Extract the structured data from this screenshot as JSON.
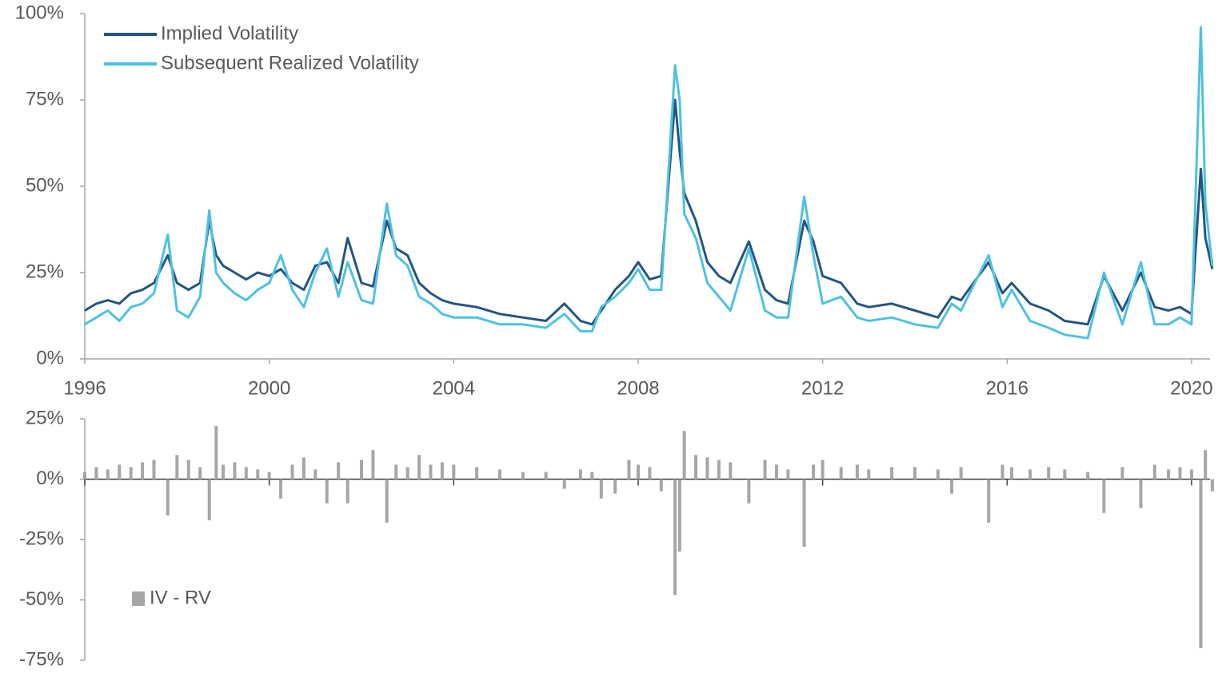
{
  "chart_data": [
    {
      "type": "line",
      "x": [
        1996.0,
        1996.25,
        1996.5,
        1996.75,
        1997.0,
        1997.25,
        1997.5,
        1997.8,
        1998.0,
        1998.25,
        1998.5,
        1998.7,
        1998.85,
        1999.0,
        1999.25,
        1999.5,
        1999.75,
        2000.0,
        2000.25,
        2000.5,
        2000.75,
        2001.0,
        2001.25,
        2001.5,
        2001.7,
        2002.0,
        2002.25,
        2002.55,
        2002.75,
        2003.0,
        2003.25,
        2003.5,
        2003.75,
        2004.0,
        2004.5,
        2005.0,
        2005.5,
        2006.0,
        2006.4,
        2006.75,
        2007.0,
        2007.2,
        2007.5,
        2007.8,
        2008.0,
        2008.25,
        2008.5,
        2008.8,
        2008.9,
        2009.0,
        2009.25,
        2009.5,
        2009.75,
        2010.0,
        2010.4,
        2010.75,
        2011.0,
        2011.25,
        2011.6,
        2011.8,
        2012.0,
        2012.4,
        2012.75,
        2013.0,
        2013.5,
        2014.0,
        2014.5,
        2014.8,
        2015.0,
        2015.6,
        2015.9,
        2016.1,
        2016.5,
        2016.9,
        2017.25,
        2017.75,
        2018.1,
        2018.5,
        2018.9,
        2019.2,
        2019.5,
        2019.75,
        2020.0,
        2020.2,
        2020.3,
        2020.45
      ],
      "series": [
        {
          "name": "Implied Volatility",
          "color": "#235582",
          "values": [
            14,
            16,
            17,
            16,
            19,
            20,
            22,
            30,
            22,
            20,
            22,
            40,
            30,
            27,
            25,
            23,
            25,
            24,
            26,
            22,
            20,
            27,
            28,
            22,
            35,
            22,
            21,
            40,
            32,
            30,
            22,
            19,
            17,
            16,
            15,
            13,
            12,
            11,
            16,
            11,
            10,
            14,
            20,
            24,
            28,
            23,
            24,
            75,
            60,
            48,
            40,
            28,
            24,
            22,
            34,
            20,
            17,
            16,
            40,
            34,
            24,
            22,
            16,
            15,
            16,
            14,
            12,
            18,
            17,
            28,
            19,
            22,
            16,
            14,
            11,
            10,
            24,
            14,
            25,
            15,
            14,
            15,
            13,
            55,
            35,
            26
          ]
        },
        {
          "name": "Subsequent Realized Volatility",
          "color": "#4dc1e3",
          "values": [
            10,
            12,
            14,
            11,
            15,
            16,
            19,
            36,
            14,
            12,
            18,
            43,
            25,
            22,
            19,
            17,
            20,
            22,
            30,
            20,
            15,
            25,
            32,
            18,
            28,
            17,
            16,
            45,
            30,
            27,
            18,
            16,
            13,
            12,
            12,
            10,
            10,
            9,
            13,
            8,
            8,
            15,
            18,
            22,
            26,
            20,
            20,
            85,
            75,
            42,
            35,
            22,
            18,
            14,
            32,
            14,
            12,
            12,
            47,
            30,
            16,
            18,
            12,
            11,
            12,
            10,
            9,
            16,
            14,
            30,
            15,
            20,
            11,
            9,
            7,
            6,
            25,
            10,
            28,
            10,
            10,
            12,
            10,
            96,
            45,
            27
          ]
        }
      ],
      "xlim": [
        1996,
        2020.4
      ],
      "xticks": [
        1996,
        2000,
        2004,
        2008,
        2012,
        2016,
        2020
      ],
      "ylim": [
        0,
        100
      ],
      "yticks": [
        {
          "value": 0,
          "label": "0%"
        },
        {
          "value": 25,
          "label": "25%"
        },
        {
          "value": 50,
          "label": "50%"
        },
        {
          "value": 75,
          "label": "75%"
        },
        {
          "value": 100,
          "label": "100%"
        }
      ],
      "legend": "upper-left"
    },
    {
      "type": "bar",
      "x": [
        1996.0,
        1996.25,
        1996.5,
        1996.75,
        1997.0,
        1997.25,
        1997.5,
        1997.8,
        1998.0,
        1998.25,
        1998.5,
        1998.7,
        1998.85,
        1999.0,
        1999.25,
        1999.5,
        1999.75,
        2000.0,
        2000.25,
        2000.5,
        2000.75,
        2001.0,
        2001.25,
        2001.5,
        2001.7,
        2002.0,
        2002.25,
        2002.55,
        2002.75,
        2003.0,
        2003.25,
        2003.5,
        2003.75,
        2004.0,
        2004.5,
        2005.0,
        2005.5,
        2006.0,
        2006.4,
        2006.75,
        2007.0,
        2007.2,
        2007.5,
        2007.8,
        2008.0,
        2008.25,
        2008.5,
        2008.8,
        2008.9,
        2009.0,
        2009.25,
        2009.5,
        2009.75,
        2010.0,
        2010.4,
        2010.75,
        2011.0,
        2011.25,
        2011.6,
        2011.8,
        2012.0,
        2012.4,
        2012.75,
        2013.0,
        2013.5,
        2014.0,
        2014.5,
        2014.8,
        2015.0,
        2015.6,
        2015.9,
        2016.1,
        2016.5,
        2016.9,
        2017.25,
        2017.75,
        2018.1,
        2018.5,
        2018.9,
        2019.2,
        2019.5,
        2019.75,
        2020.0,
        2020.2,
        2020.3,
        2020.45
      ],
      "series": [
        {
          "name": "IV - RV",
          "color": "#a6a6a6",
          "values": [
            3,
            5,
            4,
            6,
            5,
            7,
            8,
            -15,
            10,
            8,
            5,
            -17,
            22,
            6,
            7,
            5,
            4,
            3,
            -8,
            6,
            9,
            4,
            -10,
            7,
            -10,
            8,
            12,
            -18,
            6,
            5,
            10,
            6,
            7,
            6,
            5,
            4,
            3,
            3,
            -4,
            4,
            3,
            -8,
            -6,
            8,
            6,
            5,
            -5,
            -48,
            -30,
            20,
            10,
            9,
            8,
            7,
            -10,
            8,
            6,
            4,
            -28,
            6,
            8,
            5,
            6,
            4,
            5,
            5,
            4,
            -6,
            5,
            -18,
            6,
            5,
            4,
            5,
            4,
            3,
            -14,
            5,
            -12,
            6,
            4,
            5,
            4,
            -70,
            12,
            -5
          ]
        }
      ],
      "xlim": [
        1996,
        2020.4
      ],
      "xticks": [
        1996,
        2000,
        2004,
        2008,
        2012,
        2016,
        2020
      ],
      "ylim": [
        -75,
        25
      ],
      "yticks": [
        {
          "value": -75,
          "label": "-75%"
        },
        {
          "value": -50,
          "label": "-50%"
        },
        {
          "value": -25,
          "label": "-25%"
        },
        {
          "value": 0,
          "label": "0%"
        },
        {
          "value": 25,
          "label": "25%"
        }
      ],
      "legend": "lower-left"
    }
  ]
}
